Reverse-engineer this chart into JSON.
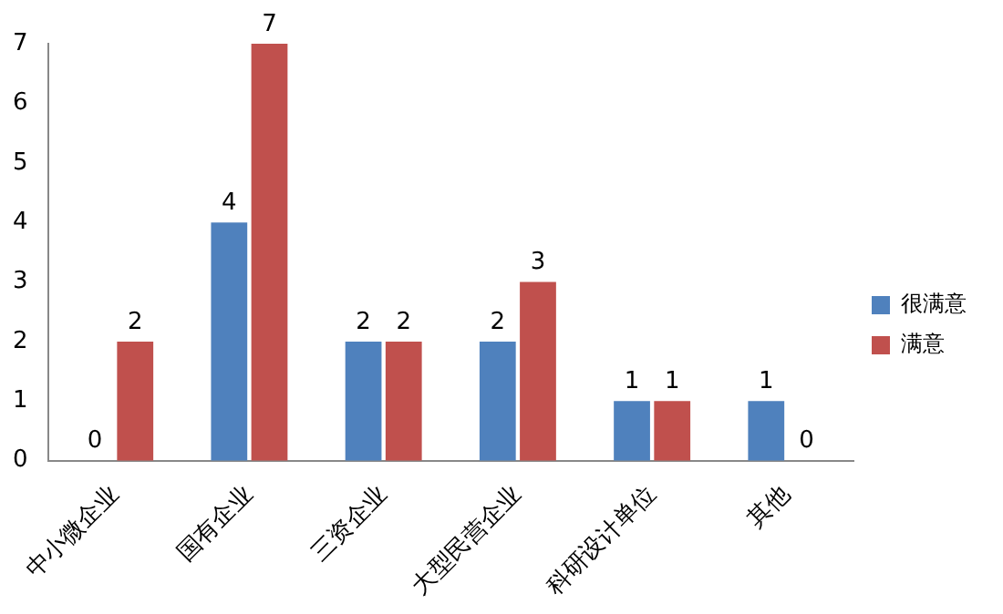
{
  "chart_data": {
    "type": "bar",
    "categories": [
      "中小微企业",
      "国有企业",
      "三资企业",
      "大型民营企业",
      "科研设计单位",
      "其他"
    ],
    "series": [
      {
        "name": "很满意",
        "color": "#4f81bd",
        "values": [
          0,
          4,
          2,
          2,
          1,
          1
        ]
      },
      {
        "name": "满意",
        "color": "#c0504d",
        "values": [
          2,
          7,
          2,
          3,
          1,
          0
        ]
      }
    ],
    "ylim": [
      0,
      7
    ],
    "yticks": [
      0,
      1,
      2,
      3,
      4,
      5,
      6,
      7
    ],
    "grid": false,
    "legend": "right",
    "data_labels": true
  }
}
